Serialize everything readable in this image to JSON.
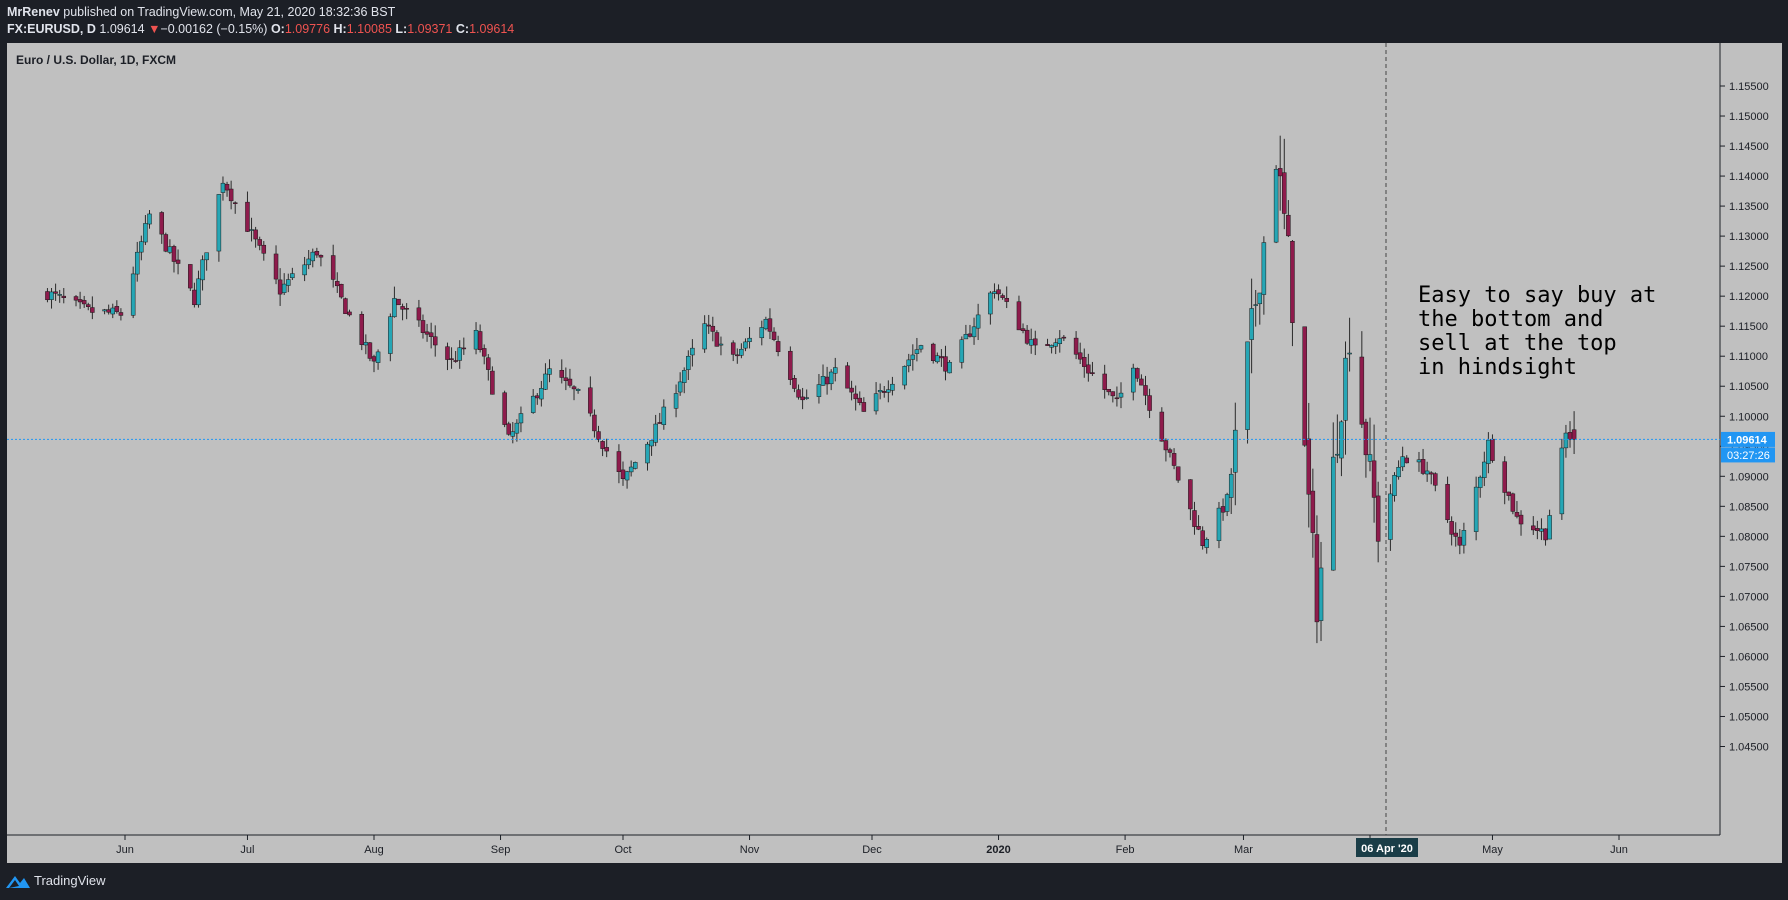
{
  "header": {
    "author": "MrRenev",
    "published_text": "published on TradingView.com, May 21, 2020 18:32:36 BST",
    "symbol": "FX:EURUSD, D",
    "last": "1.09614",
    "change_arrow": "▼",
    "change": "−0.00162 (−0.15%)",
    "o_label": "O:",
    "o_value": "1.09776",
    "h_label": "H:",
    "h_value": "1.10085",
    "l_label": "L:",
    "l_value": "1.09371",
    "c_label": "C:",
    "c_value": "1.09614"
  },
  "footer": {
    "brand": "TradingView"
  },
  "colors": {
    "background": "#c0c0c0",
    "frame": "#1c1f26",
    "bull": "#26a6b5",
    "bear": "#8e1b4c",
    "wick": "#2a2a2a",
    "price_line": "#2196f3"
  },
  "chart_data": {
    "type": "candlestick",
    "title": "Euro / U.S. Dollar, 1D, FXCM",
    "price_axis": {
      "range": [
        1.04,
        1.157
      ],
      "ticks": [
        "1.04500",
        "1.05000",
        "1.05500",
        "1.06000",
        "1.06500",
        "1.07000",
        "1.07500",
        "1.08000",
        "1.08500",
        "1.09000",
        "1.09500",
        "1.10000",
        "1.10500",
        "1.11000",
        "1.11500",
        "1.12000",
        "1.12500",
        "1.13000",
        "1.13500",
        "1.14000",
        "1.14500",
        "1.15000",
        "1.15500"
      ]
    },
    "time_axis": {
      "ticks": [
        "Jun",
        "Jul",
        "Aug",
        "Sep",
        "Oct",
        "Nov",
        "Dec",
        "2020",
        "Feb",
        "Mar",
        "Apr",
        "May",
        "Jun"
      ],
      "crosshair_label": "06 Apr '20"
    },
    "last_price_label": "1.09614",
    "countdown_label": "03:27:26",
    "annotation": [
      "Easy to say buy at",
      "the bottom and",
      "sell at the top",
      "in hindsight"
    ],
    "anchors": [
      {
        "date": "2019-05-13",
        "close": 1.1205
      },
      {
        "date": "2019-05-23",
        "close": 1.1175
      },
      {
        "date": "2019-05-31",
        "close": 1.117
      },
      {
        "date": "2019-06-07",
        "close": 1.1335
      },
      {
        "date": "2019-06-18",
        "close": 1.1195
      },
      {
        "date": "2019-06-25",
        "close": 1.1395
      },
      {
        "date": "2019-07-09",
        "close": 1.121
      },
      {
        "date": "2019-07-18",
        "close": 1.1275
      },
      {
        "date": "2019-08-01",
        "close": 1.1085
      },
      {
        "date": "2019-08-06",
        "close": 1.1195
      },
      {
        "date": "2019-08-20",
        "close": 1.109
      },
      {
        "date": "2019-08-26",
        "close": 1.1135
      },
      {
        "date": "2019-09-03",
        "close": 1.096
      },
      {
        "date": "2019-09-13",
        "close": 1.1075
      },
      {
        "date": "2019-09-20",
        "close": 1.1035
      },
      {
        "date": "2019-10-01",
        "close": 1.089
      },
      {
        "date": "2019-10-10",
        "close": 1.099
      },
      {
        "date": "2019-10-21",
        "close": 1.115
      },
      {
        "date": "2019-10-28",
        "close": 1.1095
      },
      {
        "date": "2019-11-05",
        "close": 1.116
      },
      {
        "date": "2019-11-14",
        "close": 1.1025
      },
      {
        "date": "2019-11-22",
        "close": 1.1075
      },
      {
        "date": "2019-11-29",
        "close": 1.1005
      },
      {
        "date": "2019-12-13",
        "close": 1.112
      },
      {
        "date": "2019-12-20",
        "close": 1.108
      },
      {
        "date": "2019-12-31",
        "close": 1.1215
      },
      {
        "date": "2020-01-10",
        "close": 1.111
      },
      {
        "date": "2020-01-16",
        "close": 1.1135
      },
      {
        "date": "2020-01-30",
        "close": 1.102
      },
      {
        "date": "2020-02-03",
        "close": 1.109
      },
      {
        "date": "2020-02-20",
        "close": 1.079
      },
      {
        "date": "2020-02-26",
        "close": 1.086
      },
      {
        "date": "2020-03-03",
        "close": 1.1145
      },
      {
        "date": "2020-03-09",
        "close": 1.1435
      },
      {
        "date": "2020-03-12",
        "close": 1.127
      },
      {
        "date": "2020-03-19",
        "close": 1.069
      },
      {
        "date": "2020-03-27",
        "close": 1.114
      },
      {
        "date": "2020-04-03",
        "close": 1.081
      },
      {
        "date": "2020-04-09",
        "close": 1.0935
      },
      {
        "date": "2020-04-15",
        "close": 1.091
      },
      {
        "date": "2020-04-23",
        "close": 1.078
      },
      {
        "date": "2020-04-30",
        "close": 1.0955
      },
      {
        "date": "2020-05-07",
        "close": 1.083
      },
      {
        "date": "2020-05-14",
        "close": 1.0805
      },
      {
        "date": "2020-05-19",
        "close": 1.097
      },
      {
        "date": "2020-05-21",
        "close": 1.0961
      }
    ]
  }
}
